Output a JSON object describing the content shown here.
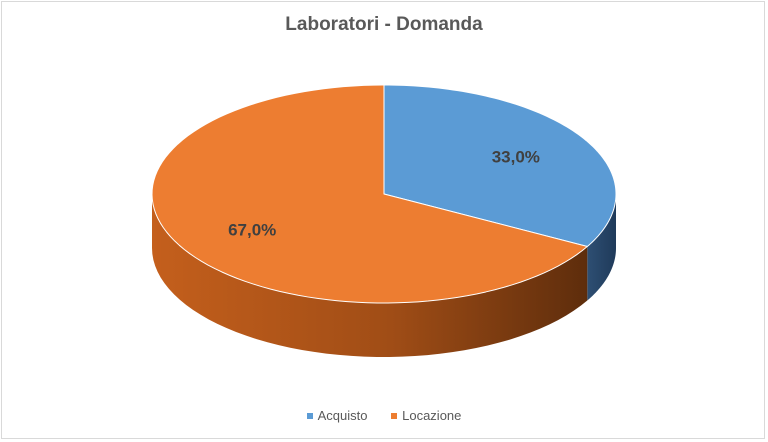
{
  "chart_data": {
    "type": "pie",
    "title": "Laboratori - Domanda",
    "categories": [
      "Acquisto",
      "Locazione"
    ],
    "values": [
      33.0,
      67.0
    ],
    "data_labels": [
      "33,0%",
      "67,0%"
    ],
    "colors": [
      "#5b9bd5",
      "#ed7d31"
    ],
    "legend_position": "bottom",
    "style": "3d"
  }
}
